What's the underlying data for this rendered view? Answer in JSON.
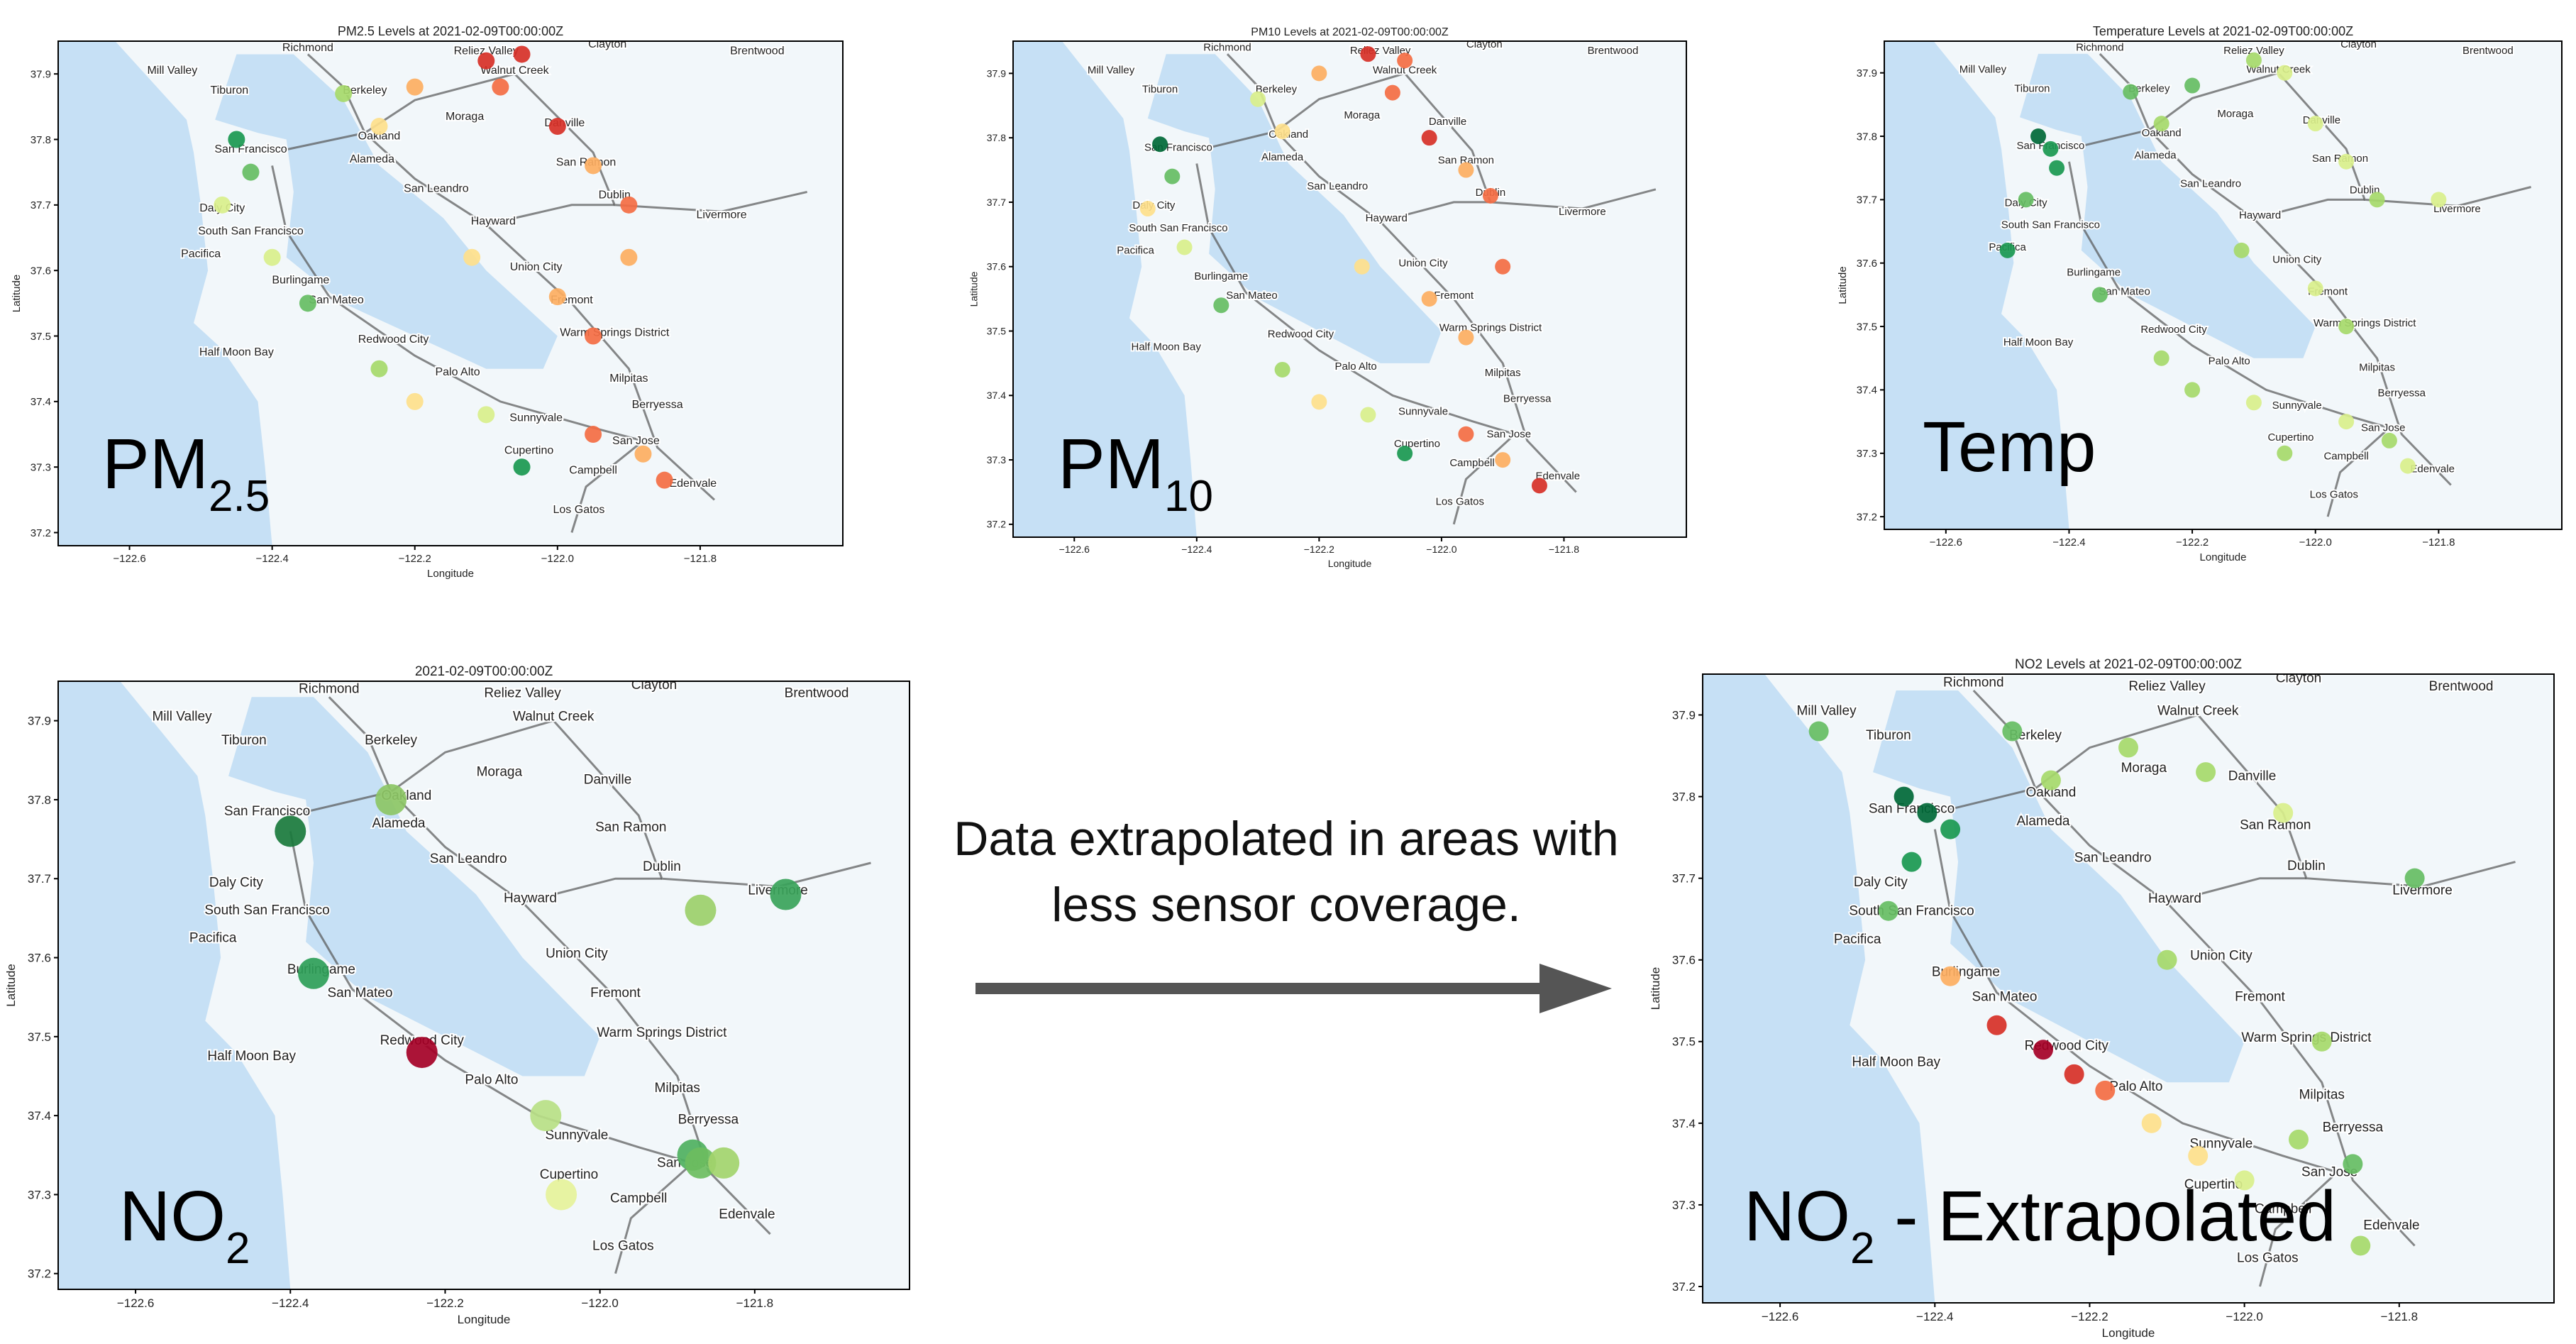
{
  "annotation": [
    "Data extrapolated in areas with",
    "less sensor coverage."
  ],
  "map_labels": [
    "Richmond",
    "Reliez Valley",
    "Clayton",
    "Brentwood",
    "Mill Valley",
    "Walnut Creek",
    "Tiburon",
    "Berkeley",
    "Moraga",
    "Danville",
    "San Francisco",
    "Oakland",
    "Alameda",
    "San Ramon",
    "San Leandro",
    "Dublin",
    "Livermore",
    "Daly City",
    "Hayward",
    "South San Francisco",
    "Pacifica",
    "Union City",
    "Burlingame",
    "Fremont",
    "San Mateo",
    "Warm Springs District",
    "Redwood City",
    "Half Moon Bay",
    "Palo Alto",
    "Milpitas",
    "Sunnyvale",
    "Berryessa",
    "San Jose",
    "Cupertino",
    "Campbell",
    "Edenvale",
    "Los Gatos"
  ],
  "chart_data": [
    {
      "type": "scatter",
      "title": "PM2.5 Levels at 2021-02-09T00:00:00Z",
      "xlabel": "Longitude",
      "ylabel": "Latitude",
      "panel_label": "PM",
      "panel_label_sub": "2.5",
      "xlim": [
        -122.7,
        -121.6
      ],
      "ylim": [
        37.18,
        37.95
      ],
      "xticks": [
        {
          "value": -122.6,
          "label": "−122.6"
        },
        {
          "value": -122.4,
          "label": "−122.4"
        },
        {
          "value": -122.2,
          "label": "−122.2"
        },
        {
          "value": -122.0,
          "label": "−122.0"
        },
        {
          "value": -121.8,
          "label": "−121.8"
        }
      ],
      "yticks": [
        37.2,
        37.3,
        37.4,
        37.5,
        37.6,
        37.7,
        37.8,
        37.9
      ],
      "x": [
        -122.45,
        -122.43,
        -122.47,
        -122.3,
        -122.25,
        -122.2,
        -122.1,
        -122.05,
        -122.08,
        -122.0,
        -121.95,
        -121.9,
        -122.12,
        -122.0,
        -121.95,
        -121.9,
        -122.25,
        -122.2,
        -122.1,
        -122.05,
        -121.95,
        -121.88,
        -121.85,
        -122.35,
        -122.4
      ],
      "values": [
        37.8,
        37.75,
        37.7,
        37.87,
        37.82,
        37.88,
        37.92,
        37.93,
        37.88,
        37.82,
        37.76,
        37.7,
        37.62,
        37.56,
        37.5,
        37.62,
        37.45,
        37.4,
        37.38,
        37.3,
        37.35,
        37.32,
        37.28,
        37.55,
        37.62
      ],
      "colors": [
        "#1a9850",
        "#66bd63",
        "#d9ef8b",
        "#a6d96a",
        "#fee08b",
        "#fdae61",
        "#d73027",
        "#d73027",
        "#f46d43",
        "#d73027",
        "#fdae61",
        "#f46d43",
        "#fee08b",
        "#fdae61",
        "#f46d43",
        "#fdae61",
        "#a6d96a",
        "#fee08b",
        "#d9ef8b",
        "#1a9850",
        "#f46d43",
        "#fdae61",
        "#f46d43",
        "#66bd63",
        "#d9ef8b"
      ]
    },
    {
      "type": "scatter",
      "title": "PM10 Levels at 2021-02-09T00:00:00Z",
      "xlabel": "Longitude",
      "ylabel": "Latitude",
      "panel_label": "PM",
      "panel_label_sub": "10",
      "xlim": [
        -122.7,
        -121.6
      ],
      "ylim": [
        37.18,
        37.95
      ],
      "xticks": [
        {
          "value": -122.6,
          "label": "−122.6"
        },
        {
          "value": -122.4,
          "label": "−122.4"
        },
        {
          "value": -122.2,
          "label": "−122.2"
        },
        {
          "value": -122.0,
          "label": "−122.0"
        },
        {
          "value": -121.8,
          "label": "−121.8"
        }
      ],
      "yticks": [
        37.2,
        37.3,
        37.4,
        37.5,
        37.6,
        37.7,
        37.8,
        37.9
      ],
      "x": [
        -122.46,
        -122.44,
        -122.48,
        -122.3,
        -122.26,
        -122.2,
        -122.12,
        -122.06,
        -122.08,
        -122.02,
        -121.96,
        -121.92,
        -122.13,
        -122.02,
        -121.96,
        -121.9,
        -122.26,
        -122.2,
        -122.12,
        -122.06,
        -121.96,
        -121.9,
        -121.84,
        -122.36,
        -122.42
      ],
      "values": [
        37.79,
        37.74,
        37.69,
        37.86,
        37.81,
        37.9,
        37.93,
        37.92,
        37.87,
        37.8,
        37.75,
        37.71,
        37.6,
        37.55,
        37.49,
        37.6,
        37.44,
        37.39,
        37.37,
        37.31,
        37.34,
        37.3,
        37.26,
        37.54,
        37.63
      ],
      "colors": [
        "#006837",
        "#66bd63",
        "#fee08b",
        "#d9ef8b",
        "#fee08b",
        "#fdae61",
        "#d73027",
        "#f46d43",
        "#f46d43",
        "#d73027",
        "#fdae61",
        "#f46d43",
        "#fee08b",
        "#fdae61",
        "#fdae61",
        "#f46d43",
        "#a6d96a",
        "#fee08b",
        "#d9ef8b",
        "#1a9850",
        "#f46d43",
        "#fdae61",
        "#d73027",
        "#66bd63",
        "#d9ef8b"
      ]
    },
    {
      "type": "scatter",
      "title": "Temperature Levels at 2021-02-09T00:00:00Z",
      "xlabel": "Longitude",
      "ylabel": "Latitude",
      "panel_label": "Temp",
      "xlim": [
        -122.7,
        -121.6
      ],
      "ylim": [
        37.18,
        37.95
      ],
      "xticks": [
        {
          "value": -122.6,
          "label": "−122.6"
        },
        {
          "value": -122.4,
          "label": "−122.4"
        },
        {
          "value": -122.2,
          "label": "−122.2"
        },
        {
          "value": -122.0,
          "label": "−122.0"
        },
        {
          "value": -121.8,
          "label": "−121.8"
        }
      ],
      "yticks": [
        37.2,
        37.3,
        37.4,
        37.5,
        37.6,
        37.7,
        37.8,
        37.9
      ],
      "x": [
        -122.45,
        -122.43,
        -122.42,
        -122.47,
        -122.3,
        -122.25,
        -122.2,
        -122.1,
        -122.05,
        -122.0,
        -121.95,
        -121.9,
        -122.12,
        -122.0,
        -121.95,
        -122.25,
        -122.2,
        -122.1,
        -122.05,
        -121.95,
        -121.88,
        -121.85,
        -122.35,
        -122.5,
        -121.8
      ],
      "values": [
        37.8,
        37.78,
        37.75,
        37.7,
        37.87,
        37.82,
        37.88,
        37.92,
        37.9,
        37.82,
        37.76,
        37.7,
        37.62,
        37.56,
        37.5,
        37.45,
        37.4,
        37.38,
        37.3,
        37.35,
        37.32,
        37.28,
        37.55,
        37.62,
        37.7
      ],
      "colors": [
        "#006837",
        "#1a9850",
        "#1a9850",
        "#66bd63",
        "#66bd63",
        "#a6d96a",
        "#66bd63",
        "#a6d96a",
        "#d9ef8b",
        "#d9ef8b",
        "#d9ef8b",
        "#a6d96a",
        "#a6d96a",
        "#d9ef8b",
        "#a6d96a",
        "#a6d96a",
        "#a6d96a",
        "#d9ef8b",
        "#a6d96a",
        "#d9ef8b",
        "#a6d96a",
        "#d9ef8b",
        "#66bd63",
        "#1a9850",
        "#d9ef8b"
      ]
    },
    {
      "type": "scatter",
      "title": "2021-02-09T00:00:00Z",
      "xlabel": "Longitude",
      "ylabel": "Latitude",
      "panel_label": "NO",
      "panel_label_sub": "2",
      "xlim": [
        -122.7,
        -121.6
      ],
      "ylim": [
        37.18,
        37.95
      ],
      "xticks": [
        {
          "value": -122.6,
          "label": "−122.6"
        },
        {
          "value": -122.4,
          "label": "−122.4"
        },
        {
          "value": -122.2,
          "label": "−122.2"
        },
        {
          "value": -122.0,
          "label": "−122.0"
        },
        {
          "value": -121.8,
          "label": "−121.8"
        }
      ],
      "yticks": [
        37.2,
        37.3,
        37.4,
        37.5,
        37.6,
        37.7,
        37.8,
        37.9
      ],
      "x": [
        -122.27,
        -122.4,
        -122.37,
        -122.23,
        -121.87,
        -121.76,
        -122.07,
        -121.88,
        -121.87,
        -121.84,
        -122.05
      ],
      "values": [
        37.8,
        37.76,
        37.58,
        37.48,
        37.66,
        37.68,
        37.4,
        37.35,
        37.34,
        37.34,
        37.3
      ],
      "colors": [
        "#8cc665",
        "#1a7a3c",
        "#2e9e58",
        "#a50026",
        "#9ccf6a",
        "#3aa35a",
        "#b9df85",
        "#4fb060",
        "#6dbd5f",
        "#a3d46c",
        "#e6f29a"
      ]
    },
    {
      "type": "scatter",
      "title": "NO2 Levels at 2021-02-09T00:00:00Z",
      "xlabel": "Longitude",
      "ylabel": "Latitude",
      "panel_label": "NO",
      "panel_label_sub": "2",
      "panel_label_suffix": " - Extrapolated",
      "xlim": [
        -122.7,
        -121.6
      ],
      "ylim": [
        37.18,
        37.95
      ],
      "xticks": [
        {
          "value": -122.6,
          "label": "−122.6"
        },
        {
          "value": -122.4,
          "label": "−122.4"
        },
        {
          "value": -122.2,
          "label": "−122.2"
        },
        {
          "value": -122.0,
          "label": "−122.0"
        },
        {
          "value": -121.8,
          "label": "−121.8"
        }
      ],
      "yticks": [
        37.2,
        37.3,
        37.4,
        37.5,
        37.6,
        37.7,
        37.8,
        37.9
      ],
      "x": [
        -122.44,
        -122.41,
        -122.38,
        -122.43,
        -122.46,
        -122.3,
        -122.25,
        -122.15,
        -122.05,
        -121.95,
        -122.38,
        -122.32,
        -122.26,
        -122.22,
        -122.18,
        -122.12,
        -122.06,
        -122.0,
        -121.93,
        -121.86,
        -121.9,
        -121.78,
        -122.1,
        -121.85,
        -122.55
      ],
      "values": [
        37.8,
        37.78,
        37.76,
        37.72,
        37.66,
        37.88,
        37.82,
        37.86,
        37.83,
        37.78,
        37.58,
        37.52,
        37.49,
        37.46,
        37.44,
        37.4,
        37.36,
        37.33,
        37.38,
        37.35,
        37.5,
        37.7,
        37.6,
        37.25,
        37.88
      ],
      "colors": [
        "#006837",
        "#006837",
        "#1a9850",
        "#1a9850",
        "#66bd63",
        "#66bd63",
        "#a6d96a",
        "#a6d96a",
        "#a6d96a",
        "#d9ef8b",
        "#fdae61",
        "#d73027",
        "#a50026",
        "#d73027",
        "#f46d43",
        "#fee08b",
        "#fee08b",
        "#d9ef8b",
        "#a6d96a",
        "#66bd63",
        "#a6d96a",
        "#66bd63",
        "#a6d96a",
        "#a6d96a",
        "#66bd63"
      ]
    }
  ]
}
